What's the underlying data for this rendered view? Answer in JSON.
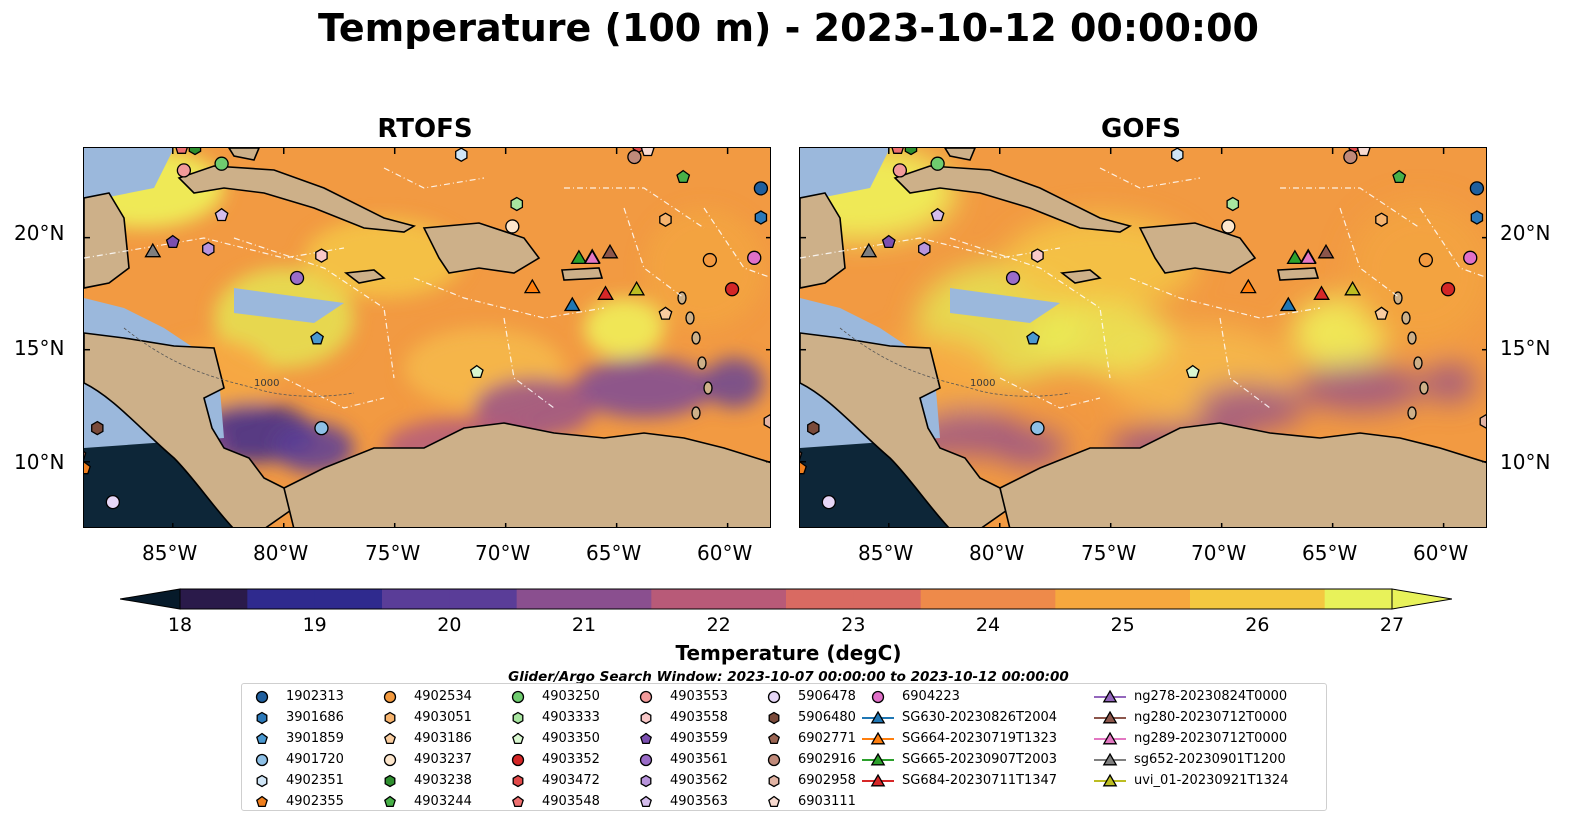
{
  "title": "Temperature (100 m) - 2023-10-12 00:00:00",
  "panels": [
    {
      "title": "RTOFS"
    },
    {
      "title": "GOFS"
    }
  ],
  "axes": {
    "lat_ticks": [
      "20°N",
      "15°N",
      "10°N"
    ],
    "lon_ticks": [
      "85°W",
      "80°W",
      "75°W",
      "70°W",
      "65°W",
      "60°W"
    ]
  },
  "colorbar": {
    "label": "Temperature (degC)",
    "ticks": [
      "18",
      "19",
      "20",
      "21",
      "22",
      "23",
      "24",
      "25",
      "26",
      "27"
    ],
    "range": [
      18,
      27
    ],
    "colors": [
      "#2a1a4a",
      "#2f2a8e",
      "#5a3d98",
      "#8a4f8f",
      "#b85a78",
      "#d96a62",
      "#ee8a4a",
      "#f6a83e",
      "#f4c840",
      "#e8f25a"
    ]
  },
  "search_window": "Glider/Argo Search Window: 2023-10-07 00:00:00 to 2023-10-12 00:00:00",
  "legend": [
    [
      {
        "label": "1902313",
        "marker": "circle",
        "color": "#1f5f9e"
      },
      {
        "label": "3901686",
        "marker": "hexagon",
        "color": "#2b78b8"
      },
      {
        "label": "3901859",
        "marker": "pentagon",
        "color": "#4a98d0"
      },
      {
        "label": "4901720",
        "marker": "circle",
        "color": "#8ec0e6"
      },
      {
        "label": "4902351",
        "marker": "hexagon",
        "color": "#cfe5f6"
      },
      {
        "label": "4902355",
        "marker": "pentagon",
        "color": "#f07f1e"
      }
    ],
    [
      {
        "label": "4902534",
        "marker": "circle",
        "color": "#f39a3f"
      },
      {
        "label": "4903051",
        "marker": "hexagon",
        "color": "#f7b46e"
      },
      {
        "label": "4903186",
        "marker": "pentagon",
        "color": "#f9cda0"
      },
      {
        "label": "4903237",
        "marker": "circle",
        "color": "#fde6cc"
      },
      {
        "label": "4903238",
        "marker": "hexagon",
        "color": "#2f8f2f"
      },
      {
        "label": "4903244",
        "marker": "pentagon",
        "color": "#48b048"
      }
    ],
    [
      {
        "label": "4903250",
        "marker": "circle",
        "color": "#6fcc6f"
      },
      {
        "label": "4903333",
        "marker": "hexagon",
        "color": "#a8e6a0"
      },
      {
        "label": "4903350",
        "marker": "pentagon",
        "color": "#d9f7d0"
      },
      {
        "label": "4903352",
        "marker": "circle",
        "color": "#d42626"
      },
      {
        "label": "4903472",
        "marker": "hexagon",
        "color": "#e24a4a"
      },
      {
        "label": "4903548",
        "marker": "pentagon",
        "color": "#ee7070"
      }
    ],
    [
      {
        "label": "4903553",
        "marker": "circle",
        "color": "#f29a9a"
      },
      {
        "label": "4903558",
        "marker": "hexagon",
        "color": "#f9c8c8"
      },
      {
        "label": "4903559",
        "marker": "pentagon",
        "color": "#7b4fb0"
      },
      {
        "label": "4903561",
        "marker": "circle",
        "color": "#9a6cc8"
      },
      {
        "label": "4903562",
        "marker": "hexagon",
        "color": "#b894dc"
      },
      {
        "label": "4903563",
        "marker": "pentagon",
        "color": "#d4bcec"
      }
    ],
    [
      {
        "label": "5906478",
        "marker": "circle",
        "color": "#e6d6f6"
      },
      {
        "label": "5906480",
        "marker": "hexagon",
        "color": "#7a4a3a"
      },
      {
        "label": "6902771",
        "marker": "pentagon",
        "color": "#9a6452"
      },
      {
        "label": "6902916",
        "marker": "circle",
        "color": "#c08a7a"
      },
      {
        "label": "6902958",
        "marker": "hexagon",
        "color": "#e2b4a4"
      },
      {
        "label": "6903111",
        "marker": "pentagon",
        "color": "#f8dad0"
      }
    ],
    [
      {
        "label": "6904223",
        "marker": "circle",
        "color": "#e070c8"
      },
      {
        "label": "SG630-20230826T2004",
        "marker": "triangle-line",
        "color": "#1f77b4"
      },
      {
        "label": "SG664-20230719T1323",
        "marker": "triangle-line",
        "color": "#ff7f0e"
      },
      {
        "label": "SG665-20230907T2003",
        "marker": "triangle-line",
        "color": "#2ca02c"
      },
      {
        "label": "SG684-20230711T1347",
        "marker": "triangle-line",
        "color": "#d62728"
      }
    ],
    [
      {
        "label": "ng278-20230824T0000",
        "marker": "triangle-line",
        "color": "#9467bd"
      },
      {
        "label": "ng280-20230712T0000",
        "marker": "triangle-line",
        "color": "#8c564b"
      },
      {
        "label": "ng289-20230712T0000",
        "marker": "triangle-line",
        "color": "#e377c2"
      },
      {
        "label": "sg652-20230901T1200",
        "marker": "triangle-line",
        "color": "#7f7f7f"
      },
      {
        "label": "uvi_01-20230921T1324",
        "marker": "triangle-line",
        "color": "#bcbd22"
      }
    ]
  ],
  "markers": [
    {
      "id": "1902313",
      "marker": "circle",
      "color": "#1f5f9e",
      "lon": -58.5,
      "lat": 22.2
    },
    {
      "id": "3901686",
      "marker": "hexagon",
      "color": "#2b78b8",
      "lon": -58.5,
      "lat": 20.9
    },
    {
      "id": "3901859",
      "marker": "pentagon",
      "color": "#4a98d0",
      "lon": -78.5,
      "lat": 15.5
    },
    {
      "id": "4901720",
      "marker": "circle",
      "color": "#8ec0e6",
      "lon": -78.3,
      "lat": 11.5
    },
    {
      "id": "4902351",
      "marker": "hexagon",
      "color": "#cfe5f6",
      "lon": -72.0,
      "lat": 23.7
    },
    {
      "id": "4902355",
      "marker": "pentagon",
      "color": "#f07f1e",
      "lon": -89.0,
      "lat": 9.7
    },
    {
      "id": "4902534",
      "marker": "circle",
      "color": "#f39a3f",
      "lon": -60.8,
      "lat": 19.0
    },
    {
      "id": "4903051",
      "marker": "hexagon",
      "color": "#f7b46e",
      "lon": -62.8,
      "lat": 20.8
    },
    {
      "id": "4903186",
      "marker": "pentagon",
      "color": "#f9cda0",
      "lon": -62.8,
      "lat": 16.6
    },
    {
      "id": "4903237",
      "marker": "circle",
      "color": "#fde6cc",
      "lon": -69.7,
      "lat": 20.5
    },
    {
      "id": "4903238",
      "marker": "hexagon",
      "color": "#2f8f2f",
      "lon": -84.0,
      "lat": 24.0
    },
    {
      "id": "4903244",
      "marker": "pentagon",
      "color": "#48b048",
      "lon": -62.0,
      "lat": 22.7
    },
    {
      "id": "4903250",
      "marker": "circle",
      "color": "#6fcc6f",
      "lon": -82.8,
      "lat": 23.3
    },
    {
      "id": "4903333",
      "marker": "hexagon",
      "color": "#a8e6a0",
      "lon": -69.5,
      "lat": 21.5
    },
    {
      "id": "4903350",
      "marker": "pentagon",
      "color": "#d9f7d0",
      "lon": -71.3,
      "lat": 14.0
    },
    {
      "id": "4903352",
      "marker": "circle",
      "color": "#d42626",
      "lon": -59.8,
      "lat": 17.7
    },
    {
      "id": "4903472",
      "marker": "hexagon",
      "color": "#e24a4a",
      "lon": -64.0,
      "lat": 24.1
    },
    {
      "id": "4903548",
      "marker": "pentagon",
      "color": "#ee7070",
      "lon": -84.6,
      "lat": 24.0
    },
    {
      "id": "4903553",
      "marker": "circle",
      "color": "#f29a9a",
      "lon": -84.5,
      "lat": 23.0
    },
    {
      "id": "4903558",
      "marker": "hexagon",
      "color": "#f9c8c8",
      "lon": -78.3,
      "lat": 19.2
    },
    {
      "id": "4903559",
      "marker": "pentagon",
      "color": "#7b4fb0",
      "lon": -85.0,
      "lat": 19.8
    },
    {
      "id": "4903561",
      "marker": "circle",
      "color": "#9a6cc8",
      "lon": -79.4,
      "lat": 18.2
    },
    {
      "id": "4903562",
      "marker": "hexagon",
      "color": "#b894dc",
      "lon": -83.4,
      "lat": 19.5
    },
    {
      "id": "4903563",
      "marker": "pentagon",
      "color": "#d4bcec",
      "lon": -82.8,
      "lat": 21.0
    },
    {
      "id": "5906478",
      "marker": "circle",
      "color": "#e6d6f6",
      "lon": -87.7,
      "lat": 8.2
    },
    {
      "id": "5906480",
      "marker": "hexagon",
      "color": "#7a4a3a",
      "lon": -88.4,
      "lat": 11.5
    },
    {
      "id": "6902771",
      "marker": "pentagon",
      "color": "#9a6452",
      "lon": -89.2,
      "lat": 10.3
    },
    {
      "id": "6902916",
      "marker": "circle",
      "color": "#c08a7a",
      "lon": -64.2,
      "lat": 23.6
    },
    {
      "id": "6902958",
      "marker": "hexagon",
      "color": "#e2b4a4",
      "lon": -58.1,
      "lat": 11.8
    },
    {
      "id": "6903111",
      "marker": "pentagon",
      "color": "#f8dad0",
      "lon": -63.6,
      "lat": 23.9
    },
    {
      "id": "6904223",
      "marker": "circle",
      "color": "#e070c8",
      "lon": -58.8,
      "lat": 19.1
    },
    {
      "id": "SG630-20230826T2004",
      "marker": "triangle",
      "color": "#1f77b4",
      "lon": -67.0,
      "lat": 17.0
    },
    {
      "id": "SG664-20230719T1323",
      "marker": "triangle",
      "color": "#ff7f0e",
      "lon": -68.8,
      "lat": 17.8
    },
    {
      "id": "SG665-20230907T2003",
      "marker": "triangle",
      "color": "#2ca02c",
      "lon": -66.7,
      "lat": 19.1
    },
    {
      "id": "SG684-20230711T1347",
      "marker": "triangle",
      "color": "#d62728",
      "lon": -65.5,
      "lat": 17.5
    },
    {
      "id": "ng278-20230824T0000",
      "marker": "triangle",
      "color": "#9467bd",
      "lon": -66.1,
      "lat": 19.15
    },
    {
      "id": "ng280-20230712T0000",
      "marker": "triangle",
      "color": "#8c564b",
      "lon": -65.3,
      "lat": 19.35
    },
    {
      "id": "ng289-20230712T0000",
      "marker": "triangle",
      "color": "#e377c2",
      "lon": -66.1,
      "lat": 19.1
    },
    {
      "id": "sg652-20230901T1200",
      "marker": "triangle",
      "color": "#7f7f7f",
      "lon": -85.9,
      "lat": 19.4
    },
    {
      "id": "uvi_01-20230921T1324",
      "marker": "triangle",
      "color": "#bcbd22",
      "lon": -64.1,
      "lat": 17.7
    }
  ],
  "contour_label": "1000",
  "map_extent": {
    "lon": [
      -89,
      -58
    ],
    "lat": [
      7,
      24
    ]
  }
}
